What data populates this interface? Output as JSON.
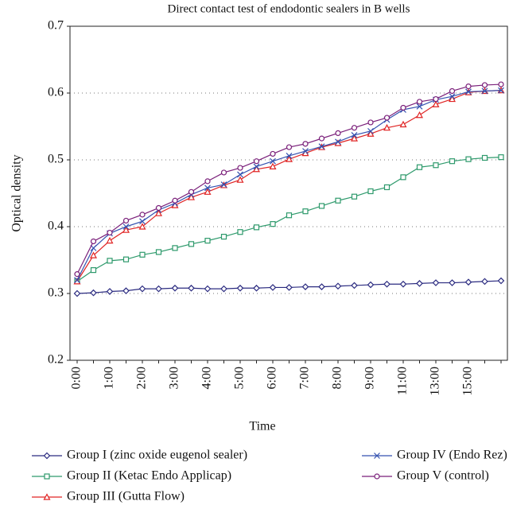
{
  "chart_data": {
    "type": "line",
    "title": "Direct contact test of endodontic sealers in B wells",
    "x_label": "Time",
    "y_label": "Optical density",
    "categories": [
      "0:00",
      null,
      "1:00",
      null,
      "2:00",
      null,
      "3:00",
      null,
      "4:00",
      null,
      "5:00",
      null,
      "6:00",
      null,
      "7:00",
      null,
      "8:00",
      null,
      "9:00",
      null,
      "11:00",
      null,
      "13:00",
      null,
      "15:00",
      null,
      null
    ],
    "ylim": [
      0.2,
      0.7
    ],
    "yticks": [
      0.2,
      0.3,
      0.4,
      0.5,
      0.6,
      0.7
    ],
    "grid": true,
    "series": [
      {
        "name": "Group I (zinc oxide eugenol sealer)",
        "color": "#2b2b80",
        "marker": "diamond",
        "values": [
          0.3,
          0.301,
          0.303,
          0.304,
          0.307,
          0.307,
          0.308,
          0.308,
          0.307,
          0.307,
          0.308,
          0.308,
          0.309,
          0.309,
          0.31,
          0.31,
          0.311,
          0.312,
          0.313,
          0.314,
          0.314,
          0.315,
          0.316,
          0.316,
          0.317,
          0.318,
          0.319
        ]
      },
      {
        "name": "Group II (Ketac Endo Applicap)",
        "color": "#2e9a6c",
        "marker": "square",
        "values": [
          0.318,
          0.335,
          0.349,
          0.351,
          0.358,
          0.362,
          0.368,
          0.374,
          0.379,
          0.385,
          0.392,
          0.399,
          0.404,
          0.417,
          0.423,
          0.431,
          0.439,
          0.445,
          0.453,
          0.459,
          0.474,
          0.489,
          0.492,
          0.498,
          0.501,
          0.503,
          0.504
        ]
      },
      {
        "name": "Group III (Gutta Flow)",
        "color": "#e02424",
        "marker": "triangle",
        "values": [
          0.318,
          0.357,
          0.379,
          0.395,
          0.4,
          0.42,
          0.432,
          0.444,
          0.452,
          0.462,
          0.47,
          0.486,
          0.49,
          0.501,
          0.51,
          0.519,
          0.525,
          0.532,
          0.539,
          0.548,
          0.553,
          0.567,
          0.583,
          0.591,
          0.601,
          0.603,
          0.604
        ]
      },
      {
        "name": "Group IV (Endo Rez)",
        "color": "#3552b0",
        "marker": "x",
        "values": [
          0.32,
          0.368,
          0.39,
          0.4,
          0.408,
          0.425,
          0.435,
          0.448,
          0.458,
          0.463,
          0.478,
          0.49,
          0.498,
          0.506,
          0.513,
          0.52,
          0.527,
          0.537,
          0.543,
          0.56,
          0.575,
          0.58,
          0.59,
          0.595,
          0.602,
          0.603,
          0.604
        ]
      },
      {
        "name": "Group V (control)",
        "color": "#7a1f7a",
        "marker": "circle",
        "values": [
          0.329,
          0.378,
          0.391,
          0.409,
          0.418,
          0.428,
          0.439,
          0.452,
          0.468,
          0.481,
          0.488,
          0.498,
          0.509,
          0.519,
          0.524,
          0.532,
          0.54,
          0.548,
          0.556,
          0.563,
          0.578,
          0.587,
          0.591,
          0.603,
          0.61,
          0.612,
          0.613
        ]
      }
    ]
  }
}
